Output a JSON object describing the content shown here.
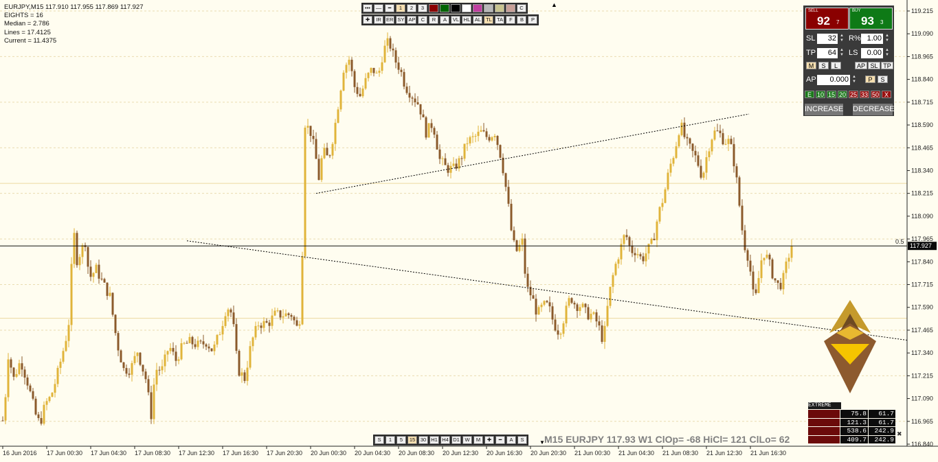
{
  "info": {
    "symbol_line": "EURJPY,M15  117.910 117.955 117.869 117.927",
    "eights": "EIGHTS = 16",
    "median": "Median = 2.786",
    "lines": "Lines = 17.4125",
    "current": "Current = 11.4375"
  },
  "toolbar_top": {
    "row1": [
      "•••",
      "‒‒",
      "━",
      "1",
      "2",
      "3"
    ],
    "row1_colors": [
      "#8b0000",
      "#006400",
      "#000000",
      "#ffffff",
      "#c040a0",
      "#b8b8b8",
      "#c8c490",
      "#c8a098"
    ],
    "row1_end": "C",
    "row2": [
      "✚",
      "IR",
      "ER",
      "SY",
      "AP",
      "C",
      "R",
      "A",
      "VL",
      "HL",
      "AL",
      "TL",
      "TA",
      "F",
      "B",
      "P"
    ],
    "row2_selected": "TL"
  },
  "toolbar_bottom": {
    "buttons": [
      "S",
      "1",
      "5",
      "15",
      "30",
      "H1",
      "H4",
      "D1",
      "W",
      "M",
      "✚",
      "━",
      "A",
      "S"
    ],
    "selected": "15"
  },
  "trade_panel": {
    "sell_label": "SELL",
    "sell_big": "92",
    "sell_small": "7",
    "buy_label": "BUY",
    "buy_big": "93",
    "buy_small": "3",
    "sl_label": "SL",
    "sl_value": "32",
    "risk_label": "R%",
    "risk_value": "1.00",
    "tp_label": "TP",
    "tp_value": "64",
    "ls_label": "LS",
    "ls_value": "0.00",
    "mode_buttons": [
      "M",
      "S",
      "L"
    ],
    "mode_buttons_right": [
      "AP",
      "SL",
      "TP"
    ],
    "ap_label": "AP",
    "ap_value": "0.000",
    "ap_buttons": [
      "P",
      "S"
    ],
    "close_chips": [
      "E",
      "10",
      "15",
      "20",
      "25",
      "33",
      "50",
      "X"
    ],
    "increase": "INCREASE",
    "decrease": "DECREASE"
  },
  "extreme_table": {
    "title": "EXTREME",
    "rows": [
      [
        "75.8",
        "61.7"
      ],
      [
        "121.3",
        "61.7"
      ],
      [
        "538.6",
        "242.9"
      ],
      [
        "409.7",
        "242.9"
      ]
    ]
  },
  "status_line": "M15 EURJPY 117.93 W1 ClOp= -68 HiCl= 121 ClLo= 62",
  "current_price": "117.927",
  "level_label": "0.5",
  "colors": {
    "bull": "#e0b43a",
    "bear": "#8b5a2b",
    "background": "#fffdf0",
    "price_tag": "#0a0a0a"
  },
  "chart_data": {
    "type": "candlestick",
    "symbol": "EURJPY",
    "timeframe": "M15",
    "ylim": [
      116.84,
      119.24
    ],
    "y_ticks": [
      "119.215",
      "119.090",
      "118.965",
      "118.840",
      "118.715",
      "118.590",
      "118.465",
      "118.340",
      "118.215",
      "118.090",
      "117.965",
      "117.840",
      "117.715",
      "117.590",
      "117.465",
      "117.340",
      "117.215",
      "117.090",
      "116.965",
      "116.840"
    ],
    "x_ticks": [
      "16 Jun 2016",
      "17 Jun 00:30",
      "17 Jun 04:30",
      "17 Jun 08:30",
      "17 Jun 12:30",
      "17 Jun 16:30",
      "17 Jun 20:30",
      "20 Jun 00:30",
      "20 Jun 04:30",
      "20 Jun 08:30",
      "20 Jun 12:30",
      "20 Jun 16:30",
      "20 Jun 20:30",
      "21 Jun 00:30",
      "21 Jun 04:30",
      "21 Jun 08:30",
      "21 Jun 12:30",
      "21 Jun 16:30"
    ],
    "close_path": [
      [
        0,
        117.05
      ],
      [
        5,
        116.95
      ],
      [
        12,
        117.33
      ],
      [
        20,
        117.2
      ],
      [
        30,
        117.3
      ],
      [
        40,
        117.18
      ],
      [
        52,
        117.0
      ],
      [
        58,
        116.95
      ],
      [
        66,
        117.06
      ],
      [
        74,
        117.1
      ],
      [
        82,
        117.2
      ],
      [
        95,
        117.4
      ],
      [
        102,
        117.55
      ],
      [
        106,
        118.05
      ],
      [
        112,
        117.85
      ],
      [
        118,
        117.9
      ],
      [
        124,
        117.95
      ],
      [
        130,
        117.75
      ],
      [
        140,
        117.8
      ],
      [
        150,
        117.72
      ],
      [
        160,
        117.65
      ],
      [
        170,
        117.4
      ],
      [
        180,
        117.25
      ],
      [
        190,
        117.25
      ],
      [
        200,
        117.35
      ],
      [
        212,
        117.2
      ],
      [
        220,
        117.0
      ],
      [
        226,
        117.25
      ],
      [
        236,
        117.25
      ],
      [
        246,
        117.38
      ],
      [
        256,
        117.3
      ],
      [
        266,
        117.38
      ],
      [
        276,
        117.4
      ],
      [
        290,
        117.38
      ],
      [
        300,
        117.4
      ],
      [
        310,
        117.35
      ],
      [
        322,
        117.48
      ],
      [
        330,
        117.6
      ],
      [
        338,
        117.55
      ],
      [
        346,
        117.25
      ],
      [
        356,
        117.2
      ],
      [
        366,
        117.4
      ],
      [
        376,
        117.5
      ],
      [
        390,
        117.5
      ],
      [
        400,
        117.55
      ],
      [
        412,
        117.55
      ],
      [
        424,
        117.55
      ],
      [
        432,
        117.48
      ],
      [
        438,
        117.55
      ],
      [
        444,
        118.6
      ],
      [
        452,
        118.55
      ],
      [
        458,
        118.45
      ],
      [
        464,
        118.3
      ],
      [
        470,
        118.45
      ],
      [
        478,
        118.4
      ],
      [
        486,
        118.55
      ],
      [
        492,
        118.7
      ],
      [
        500,
        118.9
      ],
      [
        508,
        118.95
      ],
      [
        516,
        118.8
      ],
      [
        524,
        118.75
      ],
      [
        534,
        118.85
      ],
      [
        542,
        118.9
      ],
      [
        550,
        118.85
      ],
      [
        558,
        119.0
      ],
      [
        566,
        119.05
      ],
      [
        574,
        118.95
      ],
      [
        582,
        118.9
      ],
      [
        590,
        118.8
      ],
      [
        600,
        118.75
      ],
      [
        610,
        118.7
      ],
      [
        620,
        118.55
      ],
      [
        630,
        118.6
      ],
      [
        640,
        118.4
      ],
      [
        650,
        118.35
      ],
      [
        660,
        118.35
      ],
      [
        670,
        118.4
      ],
      [
        680,
        118.5
      ],
      [
        690,
        118.52
      ],
      [
        700,
        118.55
      ],
      [
        710,
        118.52
      ],
      [
        720,
        118.55
      ],
      [
        730,
        118.4
      ],
      [
        738,
        118.2
      ],
      [
        746,
        117.95
      ],
      [
        752,
        117.9
      ],
      [
        760,
        117.95
      ],
      [
        766,
        117.7
      ],
      [
        774,
        117.65
      ],
      [
        782,
        117.55
      ],
      [
        790,
        117.6
      ],
      [
        798,
        117.6
      ],
      [
        806,
        117.5
      ],
      [
        814,
        117.45
      ],
      [
        822,
        117.55
      ],
      [
        830,
        117.65
      ],
      [
        838,
        117.6
      ],
      [
        846,
        117.6
      ],
      [
        854,
        117.55
      ],
      [
        862,
        117.55
      ],
      [
        870,
        117.5
      ],
      [
        878,
        117.4
      ],
      [
        886,
        117.65
      ],
      [
        894,
        117.8
      ],
      [
        902,
        117.9
      ],
      [
        910,
        118.0
      ],
      [
        918,
        117.9
      ],
      [
        926,
        117.9
      ],
      [
        934,
        117.85
      ],
      [
        942,
        117.9
      ],
      [
        950,
        117.95
      ],
      [
        958,
        118.1
      ],
      [
        966,
        118.2
      ],
      [
        974,
        118.35
      ],
      [
        982,
        118.45
      ],
      [
        990,
        118.6
      ],
      [
        998,
        118.5
      ],
      [
        1006,
        118.45
      ],
      [
        1014,
        118.4
      ],
      [
        1022,
        118.3
      ],
      [
        1030,
        118.45
      ],
      [
        1038,
        118.55
      ],
      [
        1046,
        118.55
      ],
      [
        1054,
        118.5
      ],
      [
        1062,
        118.5
      ],
      [
        1070,
        118.35
      ],
      [
        1076,
        118.15
      ],
      [
        1082,
        117.95
      ],
      [
        1090,
        117.85
      ],
      [
        1098,
        117.6
      ],
      [
        1104,
        117.75
      ],
      [
        1110,
        117.9
      ],
      [
        1118,
        117.85
      ],
      [
        1126,
        117.75
      ],
      [
        1134,
        117.7
      ],
      [
        1140,
        117.75
      ],
      [
        1146,
        117.85
      ],
      [
        1152,
        117.93
      ]
    ],
    "trendlines": [
      {
        "x1": 460,
        "y1": 118.215,
        "x2": 1090,
        "y2": 118.65
      },
      {
        "x1": 272,
        "y1": 117.955,
        "x2": 1320,
        "y2": 117.41
      }
    ],
    "horizontal_line": 117.927
  }
}
